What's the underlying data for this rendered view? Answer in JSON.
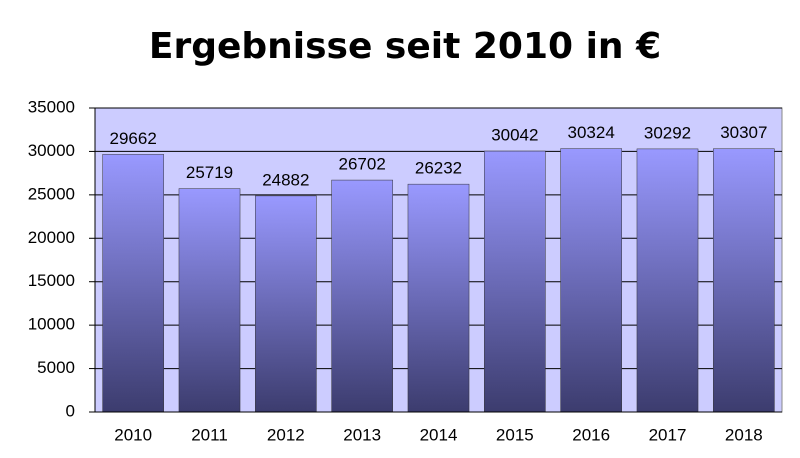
{
  "chart_data": {
    "type": "bar",
    "title": "Ergebnisse seit 2010 in €",
    "categories": [
      "2010",
      "2011",
      "2012",
      "2013",
      "2014",
      "2015",
      "2016",
      "2017",
      "2018"
    ],
    "values": [
      29662,
      25719,
      24882,
      26702,
      26232,
      30042,
      30324,
      30292,
      30307
    ],
    "color": "#9999ff",
    "ylim": [
      0,
      35000
    ],
    "yticks": [
      0,
      5000,
      10000,
      15000,
      20000,
      25000,
      30000,
      35000
    ],
    "grid": true
  }
}
